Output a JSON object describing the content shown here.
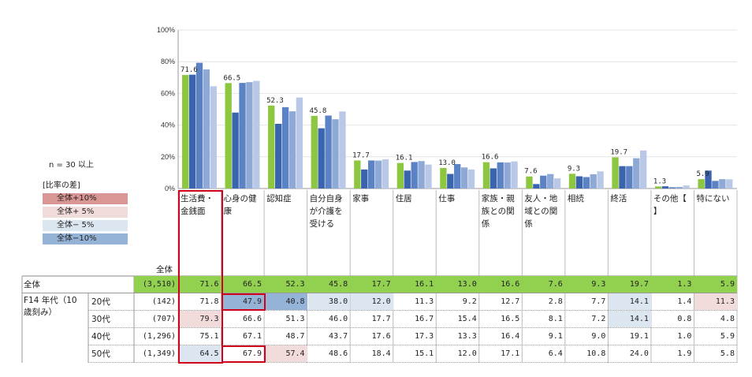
{
  "colors": {
    "series": [
      "#8dc63f",
      "#3a64ad",
      "#5b82c4",
      "#8fa9d6",
      "#b9c8e6"
    ],
    "total_row_bg": "#92d050",
    "plus10": "#da9694",
    "plus5": "#f2dcdb",
    "minus5": "#dce6f1",
    "minus10": "#95b3d7",
    "highlight": "#d0021b"
  },
  "n_note": "n = 30 以上",
  "legend": {
    "title": "[比率の差]",
    "items": [
      {
        "label": "全体+10%",
        "color": "#da9694"
      },
      {
        "label": "全体+ 5%",
        "color": "#f2dcdb"
      },
      {
        "label": "全体− 5%",
        "color": "#dce6f1"
      },
      {
        "label": "全体−10%",
        "color": "#95b3d7"
      }
    ]
  },
  "chart_data": {
    "type": "bar",
    "ylim": [
      0,
      100
    ],
    "y_ticks": [
      "0%",
      "20%",
      "40%",
      "60%",
      "80%",
      "100%"
    ],
    "categories": [
      "生活費・金銭面",
      "心身の健康",
      "認知症",
      "自分自身が介護を受ける",
      "家事",
      "住居",
      "仕事",
      "家族・親族との関係",
      "友人・地域との関係",
      "相続",
      "終活",
      "その他【】",
      "特にない"
    ],
    "category_headers": [
      "生活費・\n金銭面",
      "心身の健\n康",
      "認知症",
      "自分自身\nが介護を\n受ける",
      "家事",
      "住居",
      "仕事",
      "家族・親\n族との関\n係",
      "友人・地\n域との関\n係",
      "相続",
      "終活",
      "その他【\n】",
      "特にない"
    ],
    "series": [
      {
        "name": "全体",
        "values": [
          71.6,
          66.5,
          52.3,
          45.8,
          17.7,
          16.1,
          13.0,
          16.6,
          7.6,
          9.3,
          19.7,
          1.3,
          5.9
        ]
      },
      {
        "name": "20代",
        "values": [
          71.8,
          47.9,
          40.8,
          38.0,
          12.0,
          11.3,
          9.2,
          12.7,
          2.8,
          7.7,
          14.1,
          1.4,
          11.3
        ]
      },
      {
        "name": "30代",
        "values": [
          79.3,
          66.6,
          51.3,
          46.0,
          17.7,
          16.7,
          15.4,
          16.5,
          8.1,
          7.2,
          14.1,
          0.8,
          4.8
        ]
      },
      {
        "name": "40代",
        "values": [
          75.1,
          67.1,
          48.7,
          43.7,
          17.6,
          17.3,
          13.3,
          16.4,
          9.1,
          9.0,
          19.1,
          1.0,
          5.9
        ]
      },
      {
        "name": "50代",
        "values": [
          64.5,
          67.9,
          57.4,
          48.6,
          18.4,
          15.1,
          12.0,
          17.1,
          6.4,
          10.8,
          24.0,
          1.9,
          5.8
        ]
      }
    ],
    "bar_labels": [
      "71.6",
      "66.5",
      "52.3",
      "45.8",
      "17.7",
      "16.1",
      "13.0",
      "16.6",
      "7.6",
      "9.3",
      "19.7",
      "1.3",
      "5.9"
    ]
  },
  "table": {
    "n_header": "全体",
    "group_label": "F14 年代（10\n歳刻み）",
    "rows": [
      {
        "label": "全体",
        "n": "(3,510)",
        "cells": [
          "71.6",
          "66.5",
          "52.3",
          "45.8",
          "17.7",
          "16.1",
          "13.0",
          "16.6",
          "7.6",
          "9.3",
          "19.7",
          "1.3",
          "5.9"
        ],
        "shade": [
          "",
          "",
          "",
          "",
          "",
          "",
          "",
          "",
          "",
          "",
          "",
          "",
          ""
        ]
      },
      {
        "label": "20代",
        "n": "(142)",
        "cells": [
          "71.8",
          "47.9",
          "40.8",
          "38.0",
          "12.0",
          "11.3",
          "9.2",
          "12.7",
          "2.8",
          "7.7",
          "14.1",
          "1.4",
          "11.3"
        ],
        "shade": [
          "",
          "minus10",
          "minus10",
          "minus5",
          "minus5",
          "",
          "",
          "",
          "",
          "",
          "minus5",
          "",
          "plus5"
        ]
      },
      {
        "label": "30代",
        "n": "(707)",
        "cells": [
          "79.3",
          "66.6",
          "51.3",
          "46.0",
          "17.7",
          "16.7",
          "15.4",
          "16.5",
          "8.1",
          "7.2",
          "14.1",
          "0.8",
          "4.8"
        ],
        "shade": [
          "plus5",
          "",
          "",
          "",
          "",
          "",
          "",
          "",
          "",
          "",
          "minus5",
          "",
          ""
        ]
      },
      {
        "label": "40代",
        "n": "(1,296)",
        "cells": [
          "75.1",
          "67.1",
          "48.7",
          "43.7",
          "17.6",
          "17.3",
          "13.3",
          "16.4",
          "9.1",
          "9.0",
          "19.1",
          "1.0",
          "5.9"
        ],
        "shade": [
          "",
          "",
          "",
          "",
          "",
          "",
          "",
          "",
          "",
          "",
          "",
          "",
          ""
        ]
      },
      {
        "label": "50代",
        "n": "(1,349)",
        "cells": [
          "64.5",
          "67.9",
          "57.4",
          "48.6",
          "18.4",
          "15.1",
          "12.0",
          "17.1",
          "6.4",
          "10.8",
          "24.0",
          "1.9",
          "5.8"
        ],
        "shade": [
          "minus5",
          "",
          "plus5",
          "",
          "",
          "",
          "",
          "",
          "",
          "",
          "",
          "",
          ""
        ]
      }
    ]
  }
}
